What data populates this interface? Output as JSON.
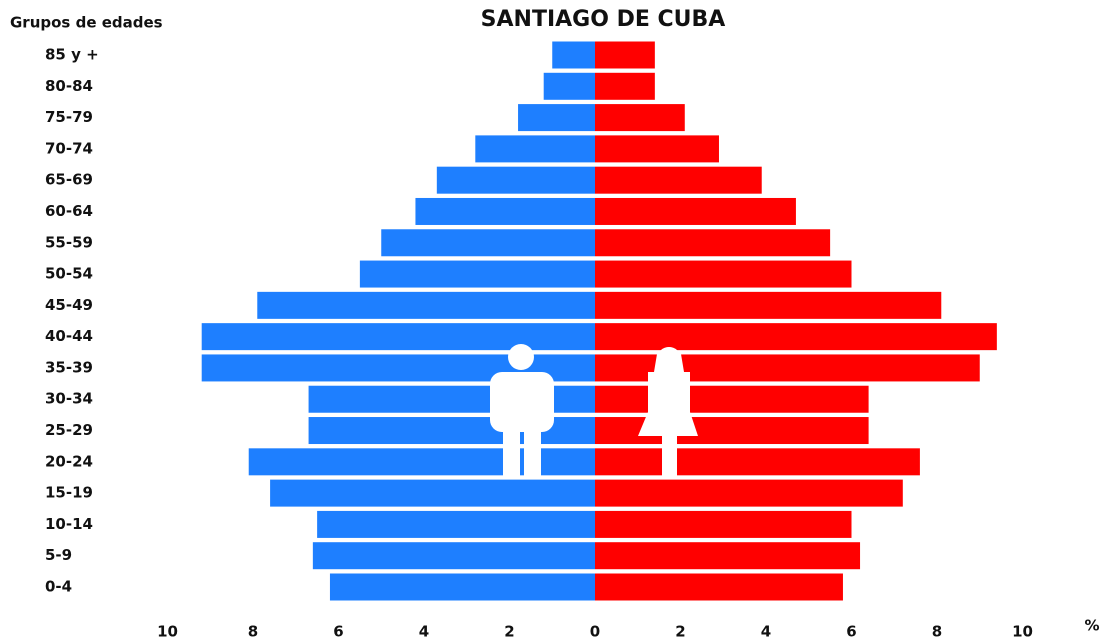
{
  "chart_data": {
    "type": "pyramid",
    "title": "SANTIAGO DE CUBA",
    "y_label": "Grupos de edades",
    "x_label": "%",
    "categories": [
      "0-4",
      "5-9",
      "10-14",
      "15-19",
      "20-24",
      "25-29",
      "30-34",
      "35-39",
      "40-44",
      "45-49",
      "50-54",
      "55-59",
      "60-64",
      "65-69",
      "70-74",
      "75-79",
      "80-84",
      "85 y +"
    ],
    "series": [
      {
        "side": "left",
        "color": "#1e7fff",
        "values": [
          6.2,
          6.6,
          6.5,
          7.6,
          8.1,
          6.7,
          6.7,
          9.2,
          9.2,
          7.9,
          5.5,
          5.0,
          4.2,
          3.7,
          2.8,
          1.8,
          1.2,
          1.0
        ]
      },
      {
        "side": "right",
        "color": "#ff0000",
        "values": [
          5.8,
          6.2,
          6.0,
          7.2,
          7.6,
          6.4,
          6.4,
          9.0,
          9.4,
          8.1,
          6.0,
          5.5,
          4.7,
          3.9,
          2.9,
          2.1,
          1.4,
          1.4
        ]
      }
    ],
    "xlim": [
      0,
      10
    ],
    "xticks": [
      0,
      2,
      4,
      6,
      8,
      10
    ]
  }
}
